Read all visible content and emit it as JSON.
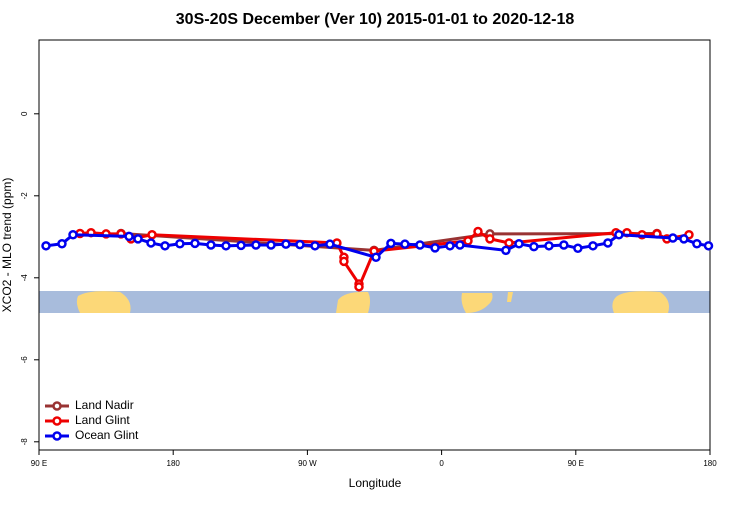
{
  "chart_data": {
    "type": "line",
    "title": "30S-20S December (Ver 10)   2015-01-01 to 2020-12-18",
    "xlabel": "Longitude",
    "ylabel": "XCO2 - MLO trend (ppm)",
    "xlim": [
      90,
      540
    ],
    "ylim": [
      -8.2,
      1.8
    ],
    "xticks": [
      {
        "value": 90,
        "label": "90 E"
      },
      180,
      {
        "value": 270,
        "label": "90 W"
      },
      {
        "value": 360,
        "label": "0"
      },
      {
        "value": 450,
        "label": "90 E"
      },
      {
        "value": 540,
        "label": "180"
      }
    ],
    "yticks": [
      0,
      -2,
      -4,
      -6,
      -8
    ],
    "legend": "bottom-left",
    "series": [
      {
        "name": "Land Nadir",
        "color": "#993333",
        "x": [
          145,
          314.7,
          392.4,
          504.4
        ],
        "values": [
          -2.92,
          -3.33,
          -2.93,
          -2.92
        ]
      },
      {
        "name": "Land Glint",
        "color": "#ee0000",
        "x": [
          117.5,
          124.9,
          135,
          145,
          151.7,
          165.8,
          289.8,
          294.5,
          294.5,
          304.6,
          304.6,
          314.7,
          377.7,
          384.4,
          392.4,
          405.2,
          476.9,
          484.3,
          494.4,
          504.4,
          511.1,
          525.9
        ],
        "values": [
          -2.92,
          -2.9,
          -2.93,
          -2.93,
          -3.05,
          -2.95,
          -3.15,
          -3.5,
          -3.6,
          -4.15,
          -4.22,
          -3.35,
          -3.1,
          -2.87,
          -3.05,
          -3.15,
          -2.9,
          -2.9,
          -2.95,
          -2.93,
          -3.05,
          -2.95
        ]
      },
      {
        "name": "Ocean Glint",
        "color": "#0000ee",
        "x": [
          94.7,
          105.4,
          112.8,
          150.4,
          156.4,
          165.1,
          174.5,
          184.5,
          194.6,
          205.3,
          215.4,
          225.5,
          235.5,
          245.6,
          255.6,
          265,
          275.1,
          285.1,
          316,
          326,
          335.4,
          345.5,
          355.6,
          365.6,
          372.3,
          403.1,
          411.9,
          421.9,
          432,
          442,
          451.4,
          461.5,
          471.5,
          478.9,
          515.1,
          522.5,
          531.2,
          539
        ],
        "values": [
          -3.22,
          -3.17,
          -2.95,
          -2.99,
          -3.05,
          -3.15,
          -3.22,
          -3.17,
          -3.16,
          -3.2,
          -3.22,
          -3.21,
          -3.2,
          -3.2,
          -3.18,
          -3.19,
          -3.22,
          -3.18,
          -3.5,
          -3.16,
          -3.18,
          -3.2,
          -3.27,
          -3.22,
          -3.2,
          -3.33,
          -3.17,
          -3.24,
          -3.22,
          -3.2,
          -3.28,
          -3.22,
          -3.15,
          -2.95,
          -3.03,
          -3.05,
          -3.17,
          -3.22
        ]
      }
    ]
  }
}
